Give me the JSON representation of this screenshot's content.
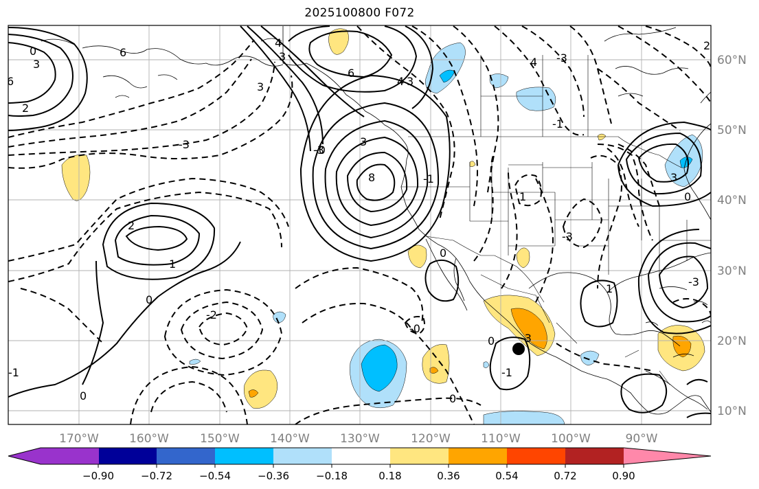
{
  "title": "2025100800 F072",
  "map": {
    "lon_labels": [
      "170°W",
      "160°W",
      "150°W",
      "140°W",
      "130°W",
      "120°W",
      "110°W",
      "100°W",
      "90°W"
    ],
    "lat_labels": [
      "60°N",
      "50°N",
      "40°N",
      "30°N",
      "20°N",
      "10°N"
    ]
  },
  "colorbar": {
    "colors": [
      "#9933cc",
      "#000099",
      "#3366cc",
      "#00bfff",
      "#b0e0fa",
      "#ffffff",
      "#ffe680",
      "#ffa500",
      "#ff4500",
      "#b22222",
      "#ff88aa"
    ],
    "labels": [
      "−0.90",
      "−0.72",
      "−0.54",
      "−0.36",
      "−0.18",
      "0.18",
      "0.36",
      "0.54",
      "0.72",
      "0.90"
    ]
  },
  "contour_labels": [
    {
      "id": "c1",
      "text": "0"
    },
    {
      "id": "c2",
      "text": "3"
    },
    {
      "id": "c3",
      "text": "6"
    },
    {
      "id": "c4",
      "text": "2"
    },
    {
      "id": "c5",
      "text": "6"
    },
    {
      "id": "c6",
      "text": "3"
    },
    {
      "id": "c7",
      "text": "-3"
    },
    {
      "id": "c8",
      "text": "4"
    },
    {
      "id": "c9",
      "text": "3"
    },
    {
      "id": "c10",
      "text": "6"
    },
    {
      "id": "c11",
      "text": "4"
    },
    {
      "id": "c12",
      "text": "3"
    },
    {
      "id": "c13",
      "text": "-3"
    },
    {
      "id": "c14",
      "text": "-0"
    },
    {
      "id": "c15",
      "text": "3"
    },
    {
      "id": "c16",
      "text": "8"
    },
    {
      "id": "c17",
      "text": "2"
    },
    {
      "id": "c18",
      "text": "1"
    },
    {
      "id": "c19",
      "text": "0"
    },
    {
      "id": "c20",
      "text": "-2"
    },
    {
      "id": "c21",
      "text": "0"
    },
    {
      "id": "c22",
      "text": "-0"
    },
    {
      "id": "c23",
      "text": "0"
    },
    {
      "id": "c24",
      "text": "-1"
    },
    {
      "id": "c25",
      "text": "1"
    },
    {
      "id": "c26",
      "text": "0"
    },
    {
      "id": "c27",
      "text": "-3"
    },
    {
      "id": "c28",
      "text": "-1"
    },
    {
      "id": "c29",
      "text": "-3"
    },
    {
      "id": "c30",
      "text": "3"
    },
    {
      "id": "c31",
      "text": "-3"
    },
    {
      "id": "c32",
      "text": "0"
    },
    {
      "id": "c33",
      "text": "1"
    },
    {
      "id": "c34",
      "text": "0"
    },
    {
      "id": "c35",
      "text": "-1"
    },
    {
      "id": "c36",
      "text": "-1"
    },
    {
      "id": "c37",
      "text": "-3"
    },
    {
      "id": "c38",
      "text": "4"
    },
    {
      "id": "c39",
      "text": "2"
    }
  ]
}
